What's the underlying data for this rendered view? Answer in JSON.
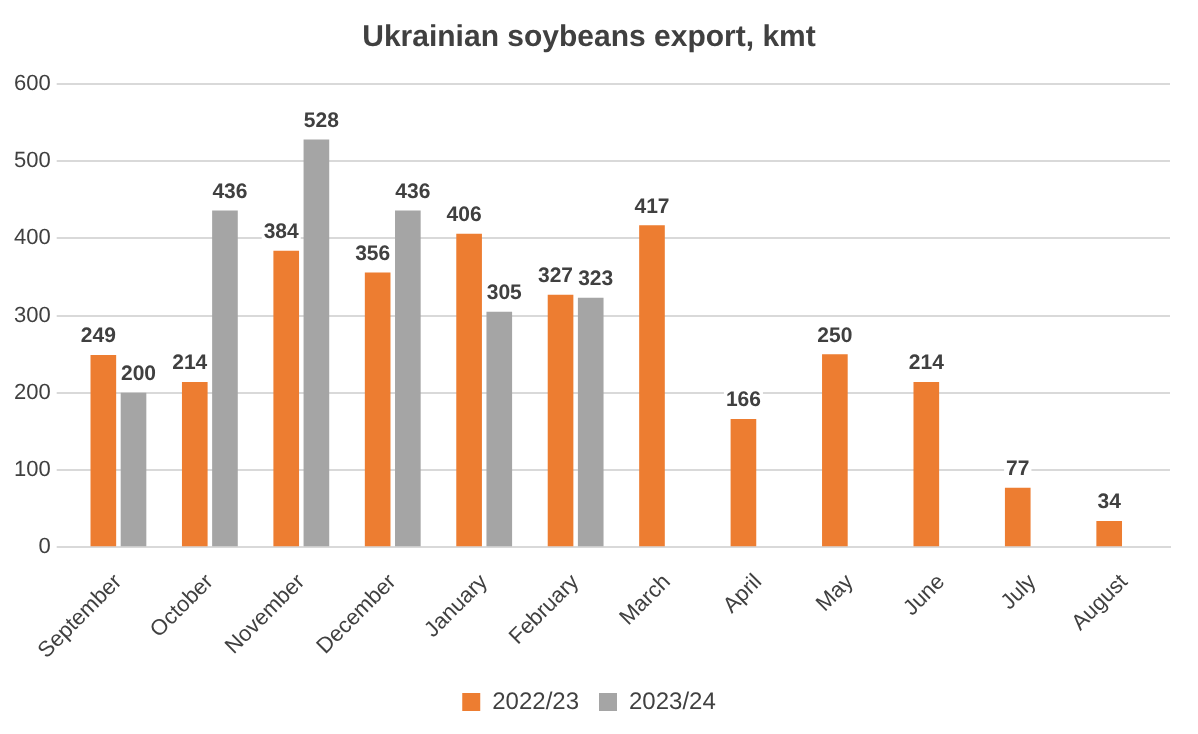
{
  "chart_data": {
    "type": "bar",
    "title": "Ukrainian soybeans export, kmt",
    "categories": [
      "September",
      "October",
      "November",
      "December",
      "January",
      "February",
      "March",
      "April",
      "May",
      "June",
      "July",
      "August"
    ],
    "series": [
      {
        "name": "2022/23",
        "color": "#ed7d31",
        "values": [
          249,
          214,
          384,
          356,
          406,
          327,
          417,
          166,
          250,
          214,
          77,
          34
        ]
      },
      {
        "name": "2023/24",
        "color": "#a5a5a5",
        "values": [
          200,
          436,
          528,
          436,
          305,
          323,
          null,
          null,
          null,
          null,
          null,
          null
        ]
      }
    ],
    "ylim": [
      0,
      600
    ],
    "yticks": [
      0,
      100,
      200,
      300,
      400,
      500,
      600
    ],
    "grid": "y",
    "legend": "bottom",
    "data_labels": true
  }
}
